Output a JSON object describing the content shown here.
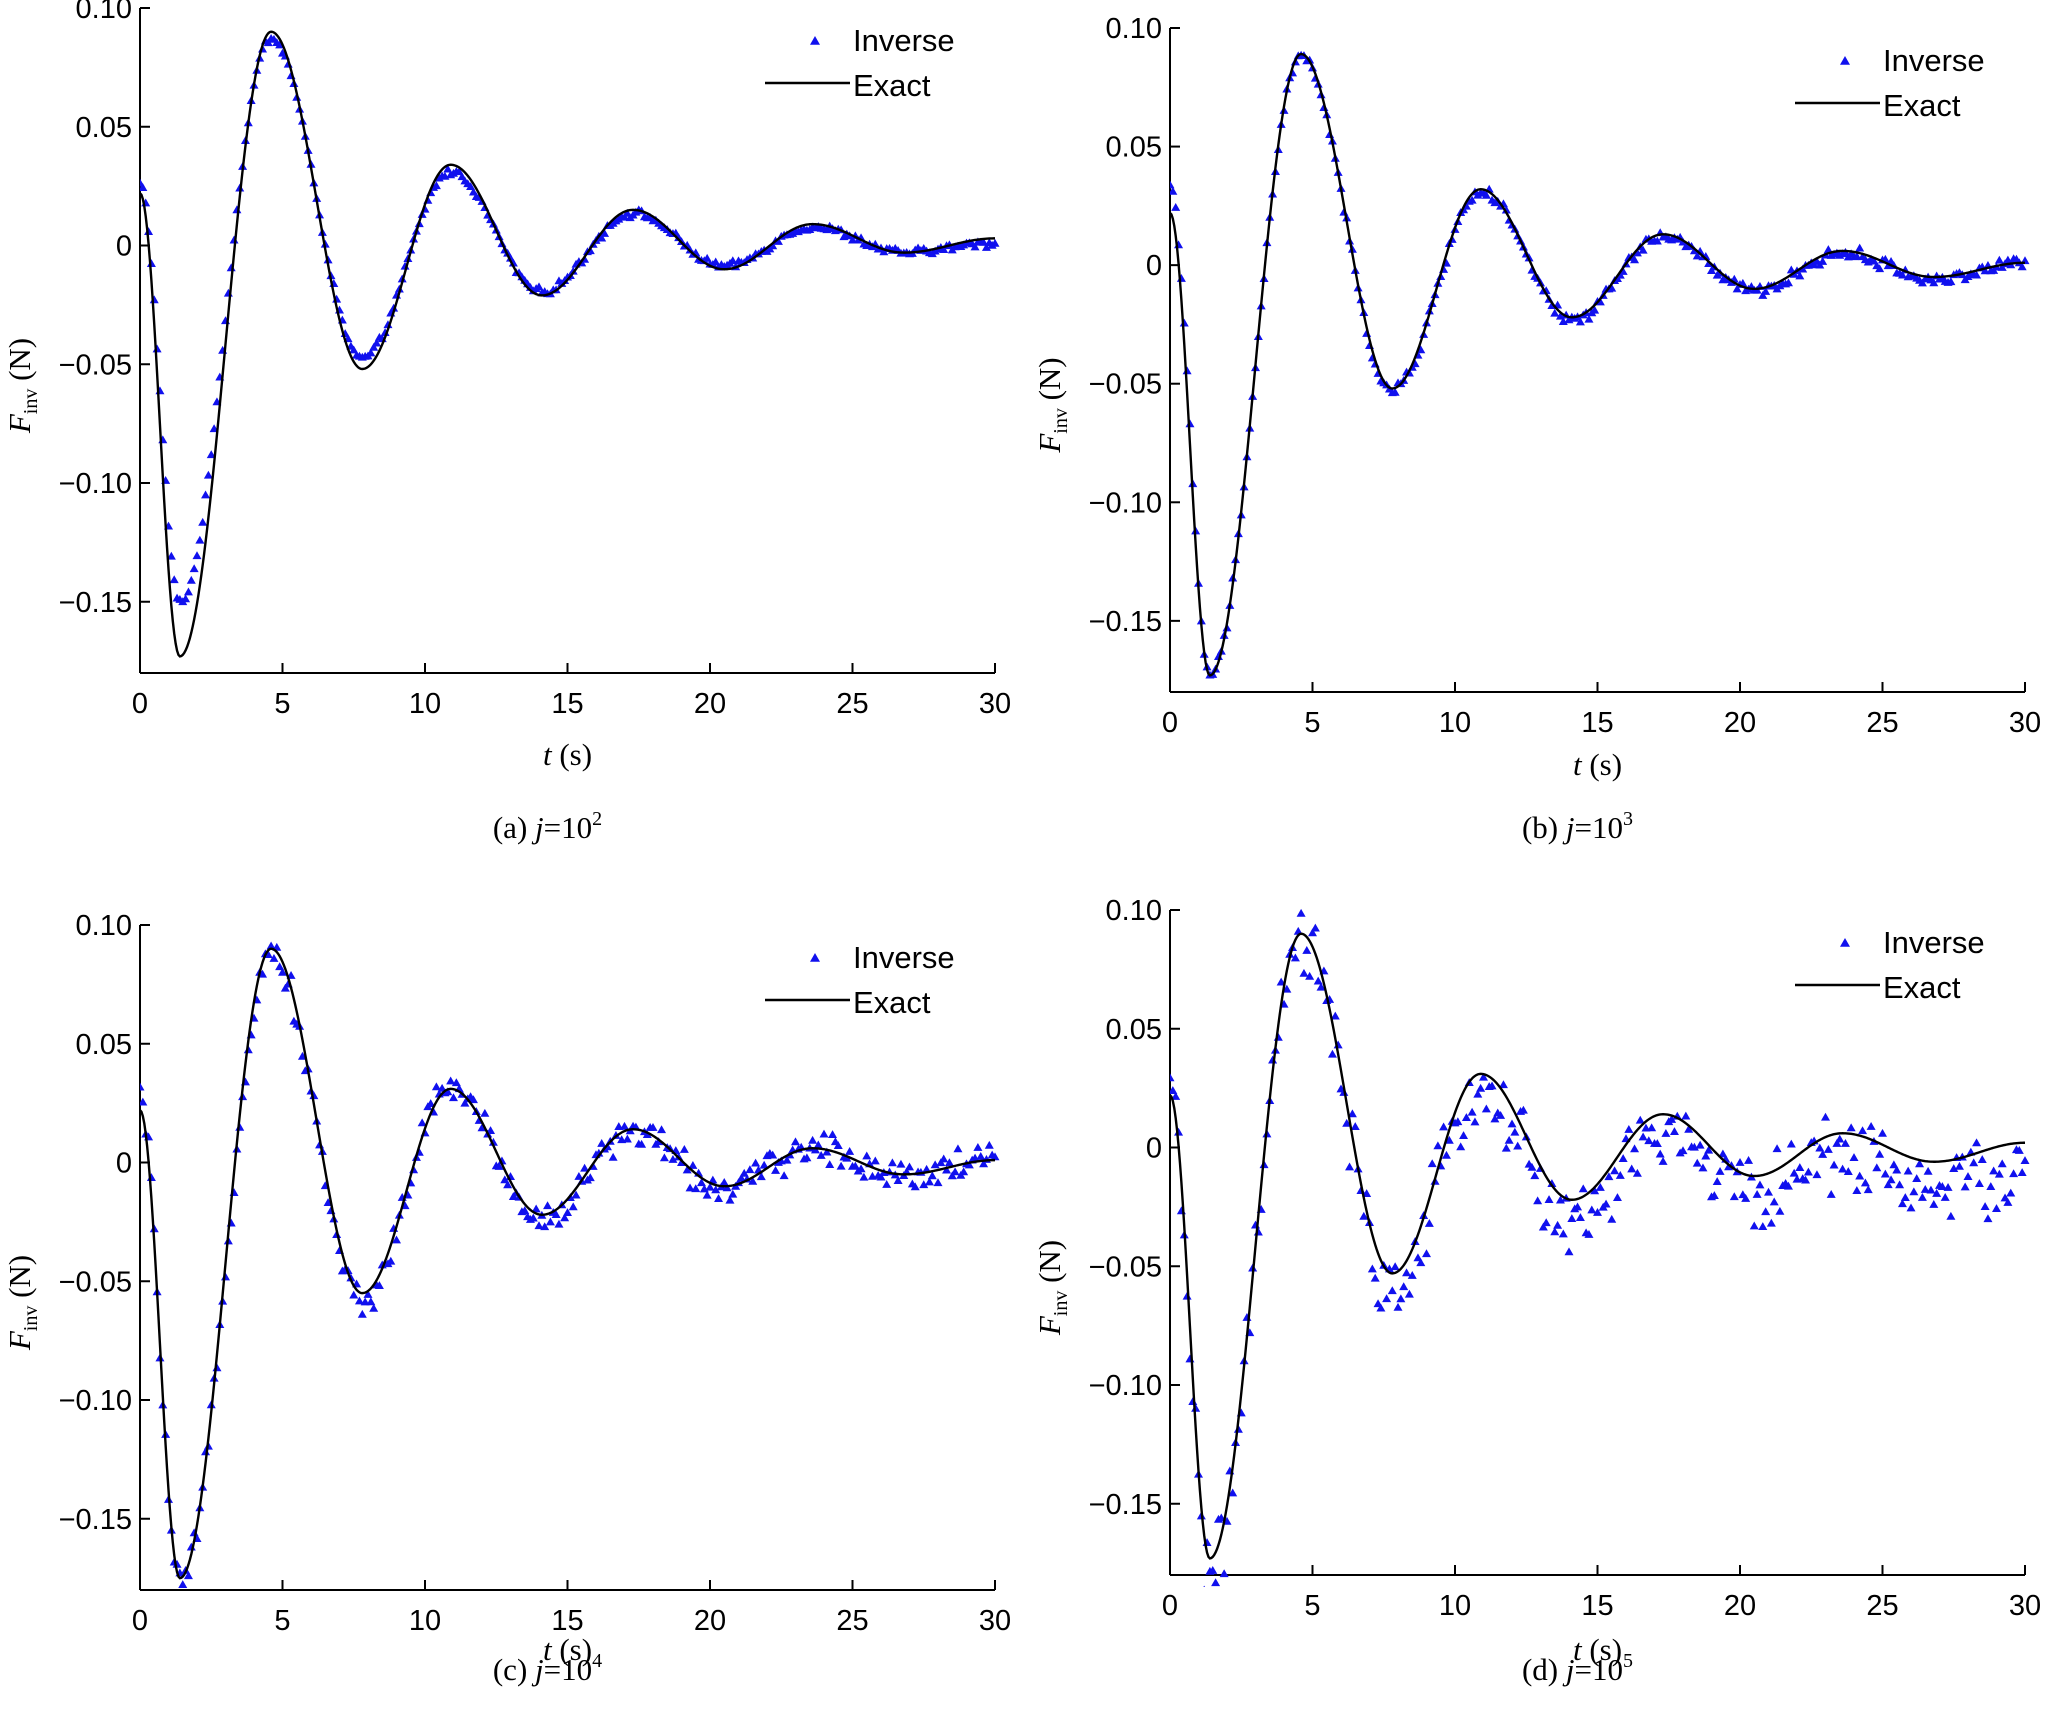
{
  "chart_data": [
    {
      "type": "scatter",
      "panel": "a",
      "caption": {
        "prefix": "(a)",
        "var": "j",
        "eq": "=10",
        "exp": "2"
      },
      "xlabel": {
        "var": "t",
        "unit": "(s)"
      },
      "ylabel": {
        "var": "F",
        "sub": "inv",
        "unit": "(N)"
      },
      "xlim": [
        0,
        30
      ],
      "ylim": [
        -0.18,
        0.1
      ],
      "xticks": [
        {
          "v": 0,
          "label": "0"
        },
        {
          "v": 5,
          "label": "5"
        },
        {
          "v": 10,
          "label": "10"
        },
        {
          "v": 15,
          "label": "15"
        },
        {
          "v": 20,
          "label": "20"
        },
        {
          "v": 25,
          "label": "25"
        },
        {
          "v": 30,
          "label": "30"
        }
      ],
      "yticks": [
        {
          "v": 0.1,
          "label": "0.10"
        },
        {
          "v": 0.05,
          "label": "0.05"
        },
        {
          "v": 0,
          "label": "0"
        },
        {
          "v": -0.05,
          "label": "−0.05"
        },
        {
          "v": -0.1,
          "label": "−0.10"
        },
        {
          "v": -0.15,
          "label": "−0.15"
        }
      ],
      "legend": {
        "position": "top-right"
      },
      "series": [
        {
          "name": "Inverse",
          "style": "triangle-markers",
          "color": "#1010ee",
          "noise": 0.0012,
          "scale": 0.97,
          "keypoints": [
            [
              0,
              0.027
            ],
            [
              1.4,
              -0.155
            ],
            [
              4.6,
              0.09
            ],
            [
              7.8,
              -0.049
            ],
            [
              10.9,
              0.032
            ],
            [
              14.1,
              -0.02
            ],
            [
              17.3,
              0.014
            ],
            [
              20.5,
              -0.009
            ],
            [
              23.6,
              0.008
            ],
            [
              26.8,
              -0.003
            ],
            [
              30,
              0.001
            ]
          ]
        },
        {
          "name": "Exact",
          "style": "line",
          "color": "#000000",
          "keypoints": [
            [
              0,
              0.022
            ],
            [
              1.4,
              -0.173
            ],
            [
              4.6,
              0.09
            ],
            [
              7.8,
              -0.052
            ],
            [
              10.9,
              0.034
            ],
            [
              14.1,
              -0.021
            ],
            [
              17.3,
              0.015
            ],
            [
              20.5,
              -0.01
            ],
            [
              23.6,
              0.009
            ],
            [
              26.8,
              -0.003
            ],
            [
              30,
              0.003
            ]
          ]
        }
      ]
    },
    {
      "type": "scatter",
      "panel": "b",
      "caption": {
        "prefix": "(b)",
        "var": "j",
        "eq": "=10",
        "exp": "3"
      },
      "xlabel": {
        "var": "t",
        "unit": "(s)"
      },
      "ylabel": {
        "var": "F",
        "sub": "inv",
        "unit": "(N)"
      },
      "xlim": [
        0,
        30
      ],
      "ylim": [
        -0.18,
        0.1
      ],
      "xticks": [
        {
          "v": 0,
          "label": "0"
        },
        {
          "v": 5,
          "label": "5"
        },
        {
          "v": 10,
          "label": "10"
        },
        {
          "v": 15,
          "label": "15"
        },
        {
          "v": 20,
          "label": "20"
        },
        {
          "v": 25,
          "label": "25"
        },
        {
          "v": 30,
          "label": "30"
        }
      ],
      "yticks": [
        {
          "v": 0.1,
          "label": "0.10"
        },
        {
          "v": 0.05,
          "label": "0.05"
        },
        {
          "v": 0,
          "label": "0"
        },
        {
          "v": -0.05,
          "label": "−0.05"
        },
        {
          "v": -0.1,
          "label": "−0.10"
        },
        {
          "v": -0.15,
          "label": "−0.15"
        }
      ],
      "legend": {
        "position": "top-right"
      },
      "series": [
        {
          "name": "Inverse",
          "style": "triangle-markers",
          "color": "#1010ee",
          "noise": 0.002,
          "scale": 1.0,
          "keypoints": [
            [
              0,
              0.034
            ],
            [
              1.4,
              -0.173
            ],
            [
              4.6,
              0.088
            ],
            [
              7.8,
              -0.053
            ],
            [
              10.9,
              0.031
            ],
            [
              14.1,
              -0.023
            ],
            [
              17.3,
              0.012
            ],
            [
              20.5,
              -0.011
            ],
            [
              23.6,
              0.005
            ],
            [
              26.8,
              -0.006
            ],
            [
              30,
              0.001
            ]
          ]
        },
        {
          "name": "Exact",
          "style": "line",
          "color": "#000000",
          "keypoints": [
            [
              0,
              0.022
            ],
            [
              1.4,
              -0.173
            ],
            [
              4.6,
              0.089
            ],
            [
              7.8,
              -0.052
            ],
            [
              10.9,
              0.032
            ],
            [
              14.1,
              -0.022
            ],
            [
              17.3,
              0.013
            ],
            [
              20.5,
              -0.01
            ],
            [
              23.6,
              0.006
            ],
            [
              26.8,
              -0.005
            ],
            [
              30,
              0.001
            ]
          ]
        }
      ]
    },
    {
      "type": "scatter",
      "panel": "c",
      "caption": {
        "prefix": "(c)",
        "var": "j",
        "eq": "=10",
        "exp": "4"
      },
      "xlabel": {
        "var": "t",
        "unit": "(s)"
      },
      "ylabel": {
        "var": "F",
        "sub": "inv",
        "unit": "(N)"
      },
      "xlim": [
        0,
        30
      ],
      "ylim": [
        -0.18,
        0.1
      ],
      "xticks": [
        {
          "v": 0,
          "label": "0"
        },
        {
          "v": 5,
          "label": "5"
        },
        {
          "v": 10,
          "label": "10"
        },
        {
          "v": 15,
          "label": "15"
        },
        {
          "v": 20,
          "label": "20"
        },
        {
          "v": 25,
          "label": "25"
        },
        {
          "v": 30,
          "label": "30"
        }
      ],
      "yticks": [
        {
          "v": 0.1,
          "label": "0.10"
        },
        {
          "v": 0.05,
          "label": "0.05"
        },
        {
          "v": 0,
          "label": "0"
        },
        {
          "v": -0.05,
          "label": "−0.05"
        },
        {
          "v": -0.1,
          "label": "−0.10"
        },
        {
          "v": -0.15,
          "label": "−0.15"
        }
      ],
      "legend": {
        "position": "top-right"
      },
      "series": [
        {
          "name": "Inverse",
          "style": "triangle-markers",
          "color": "#1010ee",
          "noise": 0.005,
          "scale": 1.0,
          "keypoints": [
            [
              0,
              0.027
            ],
            [
              1.4,
              -0.178
            ],
            [
              4.6,
              0.088
            ],
            [
              7.8,
              -0.058
            ],
            [
              10.9,
              0.032
            ],
            [
              14.1,
              -0.024
            ],
            [
              17.3,
              0.013
            ],
            [
              20.5,
              -0.011
            ],
            [
              23.6,
              0.006
            ],
            [
              26.8,
              -0.005
            ],
            [
              30,
              0.002
            ]
          ]
        },
        {
          "name": "Exact",
          "style": "line",
          "color": "#000000",
          "keypoints": [
            [
              0,
              0.022
            ],
            [
              1.4,
              -0.175
            ],
            [
              4.6,
              0.09
            ],
            [
              7.8,
              -0.055
            ],
            [
              10.9,
              0.031
            ],
            [
              14.1,
              -0.022
            ],
            [
              17.3,
              0.014
            ],
            [
              20.5,
              -0.01
            ],
            [
              23.6,
              0.006
            ],
            [
              26.8,
              -0.005
            ],
            [
              30,
              0.001
            ]
          ]
        }
      ]
    },
    {
      "type": "scatter",
      "panel": "d",
      "caption": {
        "prefix": "(d)",
        "var": "j",
        "eq": "=10",
        "exp": "5"
      },
      "xlabel": {
        "var": "t",
        "unit": "(s)"
      },
      "ylabel": {
        "var": "F",
        "sub": "inv",
        "unit": "(N)"
      },
      "xlim": [
        0,
        30
      ],
      "ylim": [
        -0.18,
        0.1
      ],
      "xticks": [
        {
          "v": 0,
          "label": "0"
        },
        {
          "v": 5,
          "label": "5"
        },
        {
          "v": 10,
          "label": "10"
        },
        {
          "v": 15,
          "label": "15"
        },
        {
          "v": 20,
          "label": "20"
        },
        {
          "v": 25,
          "label": "25"
        },
        {
          "v": 30,
          "label": "30"
        }
      ],
      "yticks": [
        {
          "v": 0.1,
          "label": "0.10"
        },
        {
          "v": 0.05,
          "label": "0.05"
        },
        {
          "v": 0,
          "label": "0"
        },
        {
          "v": -0.05,
          "label": "−0.05"
        },
        {
          "v": -0.1,
          "label": "−0.10"
        },
        {
          "v": -0.15,
          "label": "−0.15"
        }
      ],
      "legend": {
        "position": "top-right"
      },
      "series": [
        {
          "name": "Inverse",
          "style": "triangle-markers",
          "color": "#1010ee",
          "noise": 0.012,
          "scale": 1.0,
          "offset": -0.004,
          "keypoints": [
            [
              0,
              0.02
            ],
            [
              1.4,
              -0.178
            ],
            [
              4.6,
              0.088
            ],
            [
              7.8,
              -0.058
            ],
            [
              10.9,
              0.028
            ],
            [
              14.1,
              -0.028
            ],
            [
              17.3,
              0.01
            ],
            [
              20.5,
              -0.015
            ],
            [
              23.6,
              0.002
            ],
            [
              26.8,
              -0.012
            ],
            [
              30,
              -0.008
            ]
          ]
        },
        {
          "name": "Exact",
          "style": "line",
          "color": "#000000",
          "keypoints": [
            [
              0,
              0.022
            ],
            [
              1.4,
              -0.173
            ],
            [
              4.6,
              0.09
            ],
            [
              7.8,
              -0.053
            ],
            [
              10.9,
              0.031
            ],
            [
              14.1,
              -0.022
            ],
            [
              17.3,
              0.014
            ],
            [
              20.5,
              -0.012
            ],
            [
              23.6,
              0.006
            ],
            [
              26.8,
              -0.006
            ],
            [
              30,
              0.002
            ]
          ]
        }
      ]
    }
  ]
}
